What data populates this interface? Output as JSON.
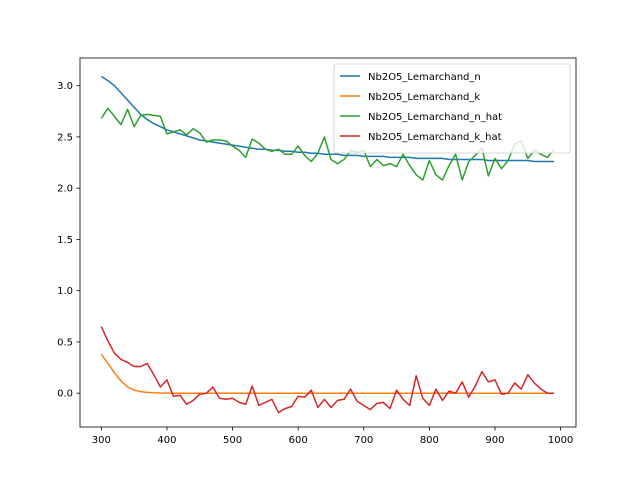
{
  "chart_data": {
    "type": "line",
    "title": "",
    "xlabel": "",
    "ylabel": "",
    "xlim": [
      267.5,
      1023.5
    ],
    "ylim": [
      -0.33,
      3.27
    ],
    "xticks": [
      300,
      400,
      500,
      600,
      700,
      800,
      900,
      1000
    ],
    "yticks": [
      0.0,
      0.5,
      1.0,
      1.5,
      2.0,
      2.5,
      3.0
    ],
    "xtick_labels": [
      "300",
      "400",
      "500",
      "600",
      "700",
      "800",
      "900",
      "1000"
    ],
    "ytick_labels": [
      "0.0",
      "0.5",
      "1.0",
      "1.5",
      "2.0",
      "2.5",
      "3.0"
    ],
    "grid": false,
    "legend_position": "top-right",
    "x": [
      300,
      310,
      320,
      330,
      340,
      350,
      360,
      370,
      380,
      390,
      400,
      410,
      420,
      430,
      440,
      450,
      460,
      470,
      480,
      490,
      500,
      510,
      520,
      530,
      540,
      550,
      560,
      570,
      580,
      590,
      600,
      610,
      620,
      630,
      640,
      650,
      660,
      670,
      680,
      690,
      700,
      710,
      720,
      730,
      740,
      750,
      760,
      770,
      780,
      790,
      800,
      810,
      820,
      830,
      840,
      850,
      860,
      870,
      880,
      890,
      900,
      910,
      920,
      930,
      940,
      950,
      960,
      970,
      980,
      990
    ],
    "series": [
      {
        "name": "Nb2O5_Lemarchand_n",
        "color": "#1f77b4",
        "values": [
          3.09,
          3.05,
          3.0,
          2.93,
          2.86,
          2.79,
          2.72,
          2.67,
          2.63,
          2.6,
          2.57,
          2.55,
          2.53,
          2.51,
          2.49,
          2.47,
          2.46,
          2.45,
          2.44,
          2.43,
          2.42,
          2.41,
          2.4,
          2.39,
          2.38,
          2.38,
          2.37,
          2.37,
          2.36,
          2.36,
          2.35,
          2.35,
          2.34,
          2.34,
          2.33,
          2.33,
          2.33,
          2.32,
          2.32,
          2.32,
          2.31,
          2.31,
          2.31,
          2.31,
          2.3,
          2.3,
          2.3,
          2.3,
          2.29,
          2.29,
          2.29,
          2.29,
          2.29,
          2.28,
          2.28,
          2.28,
          2.28,
          2.28,
          2.28,
          2.27,
          2.27,
          2.27,
          2.27,
          2.27,
          2.27,
          2.27,
          2.26,
          2.26,
          2.26,
          2.26
        ]
      },
      {
        "name": "Nb2O5_Lemarchand_k",
        "color": "#ff7f0e",
        "values": [
          0.38,
          0.29,
          0.2,
          0.12,
          0.06,
          0.03,
          0.015,
          0.008,
          0.004,
          0.002,
          0.001,
          0,
          0,
          0,
          0,
          0,
          0,
          0,
          0,
          0,
          0,
          0,
          0,
          0,
          0,
          0,
          0,
          0,
          0,
          0,
          0,
          0,
          0,
          0,
          0,
          0,
          0,
          0,
          0,
          0,
          0,
          0,
          0,
          0,
          0,
          0,
          0,
          0,
          0,
          0,
          0,
          0,
          0,
          0,
          0,
          0,
          0,
          0,
          0,
          0,
          0,
          0,
          0,
          0,
          0,
          0,
          0,
          0,
          0,
          0
        ]
      },
      {
        "name": "Nb2O5_Lemarchand_n_hat",
        "color": "#2ca02c",
        "values": [
          2.68,
          2.78,
          2.7,
          2.62,
          2.77,
          2.6,
          2.71,
          2.72,
          2.71,
          2.7,
          2.53,
          2.55,
          2.57,
          2.52,
          2.58,
          2.54,
          2.45,
          2.47,
          2.47,
          2.46,
          2.41,
          2.37,
          2.3,
          2.48,
          2.44,
          2.38,
          2.36,
          2.38,
          2.33,
          2.33,
          2.41,
          2.32,
          2.26,
          2.34,
          2.5,
          2.28,
          2.24,
          2.28,
          2.37,
          2.35,
          2.37,
          2.21,
          2.28,
          2.22,
          2.24,
          2.21,
          2.33,
          2.22,
          2.13,
          2.08,
          2.27,
          2.13,
          2.08,
          2.22,
          2.33,
          2.08,
          2.26,
          2.32,
          2.39,
          2.12,
          2.29,
          2.19,
          2.27,
          2.43,
          2.46,
          2.29,
          2.37,
          2.33,
          2.3,
          2.38
        ]
      },
      {
        "name": "Nb2O5_Lemarchand_k_hat",
        "color": "#d62728",
        "values": [
          0.65,
          0.51,
          0.39,
          0.33,
          0.3,
          0.26,
          0.26,
          0.29,
          0.18,
          0.06,
          0.13,
          -0.03,
          -0.02,
          -0.11,
          -0.07,
          -0.01,
          0.0,
          0.06,
          -0.05,
          -0.06,
          -0.05,
          -0.09,
          -0.11,
          0.07,
          -0.12,
          -0.09,
          -0.06,
          -0.19,
          -0.15,
          -0.13,
          -0.03,
          -0.04,
          0.03,
          -0.14,
          -0.06,
          -0.14,
          -0.07,
          -0.06,
          0.04,
          -0.08,
          -0.12,
          -0.16,
          -0.1,
          -0.09,
          -0.15,
          0.03,
          -0.06,
          -0.12,
          0.17,
          -0.05,
          -0.12,
          0.04,
          -0.07,
          0.02,
          0.0,
          0.11,
          -0.04,
          0.07,
          0.21,
          0.11,
          0.13,
          -0.01,
          0.0,
          0.1,
          0.04,
          0.18,
          0.1,
          0.04,
          0.0,
          0.0
        ]
      }
    ]
  }
}
